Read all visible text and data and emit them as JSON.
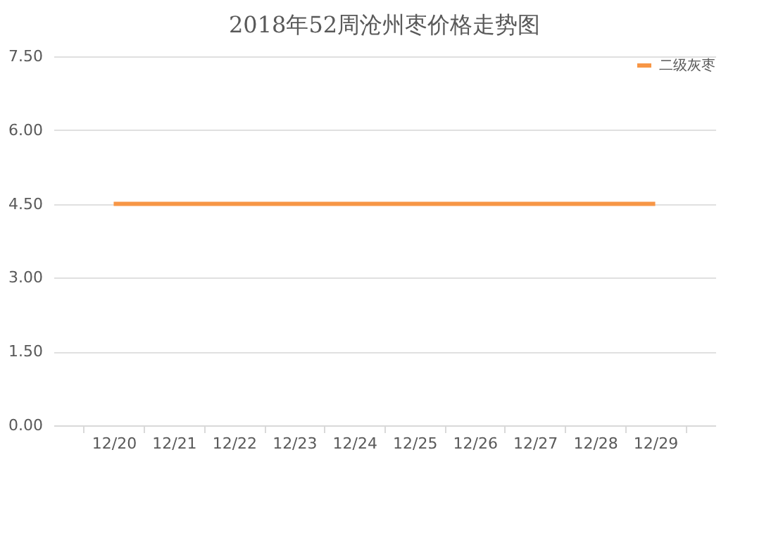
{
  "chart_data": {
    "type": "line",
    "title": "2018年52周沧州枣价格走势图",
    "categories": [
      "12/20",
      "12/21",
      "12/22",
      "12/23",
      "12/24",
      "12/25",
      "12/26",
      "12/27",
      "12/28",
      "12/29"
    ],
    "series": [
      {
        "name": "二级灰枣",
        "color": "#f79646",
        "values": [
          4.5,
          4.5,
          4.5,
          4.5,
          4.5,
          4.5,
          4.5,
          4.5,
          4.5,
          4.5
        ]
      }
    ],
    "ylim": [
      0,
      7.5
    ],
    "yticks": [
      {
        "value": 0,
        "label": "0.00"
      },
      {
        "value": 1.5,
        "label": "1.50"
      },
      {
        "value": 3,
        "label": "3.00"
      },
      {
        "value": 4.5,
        "label": "4.50"
      },
      {
        "value": 6,
        "label": "6.00"
      },
      {
        "value": 7.5,
        "label": "7.50"
      }
    ],
    "grid": "y",
    "legend": "top right",
    "marker": "none",
    "line_style": "solid"
  }
}
